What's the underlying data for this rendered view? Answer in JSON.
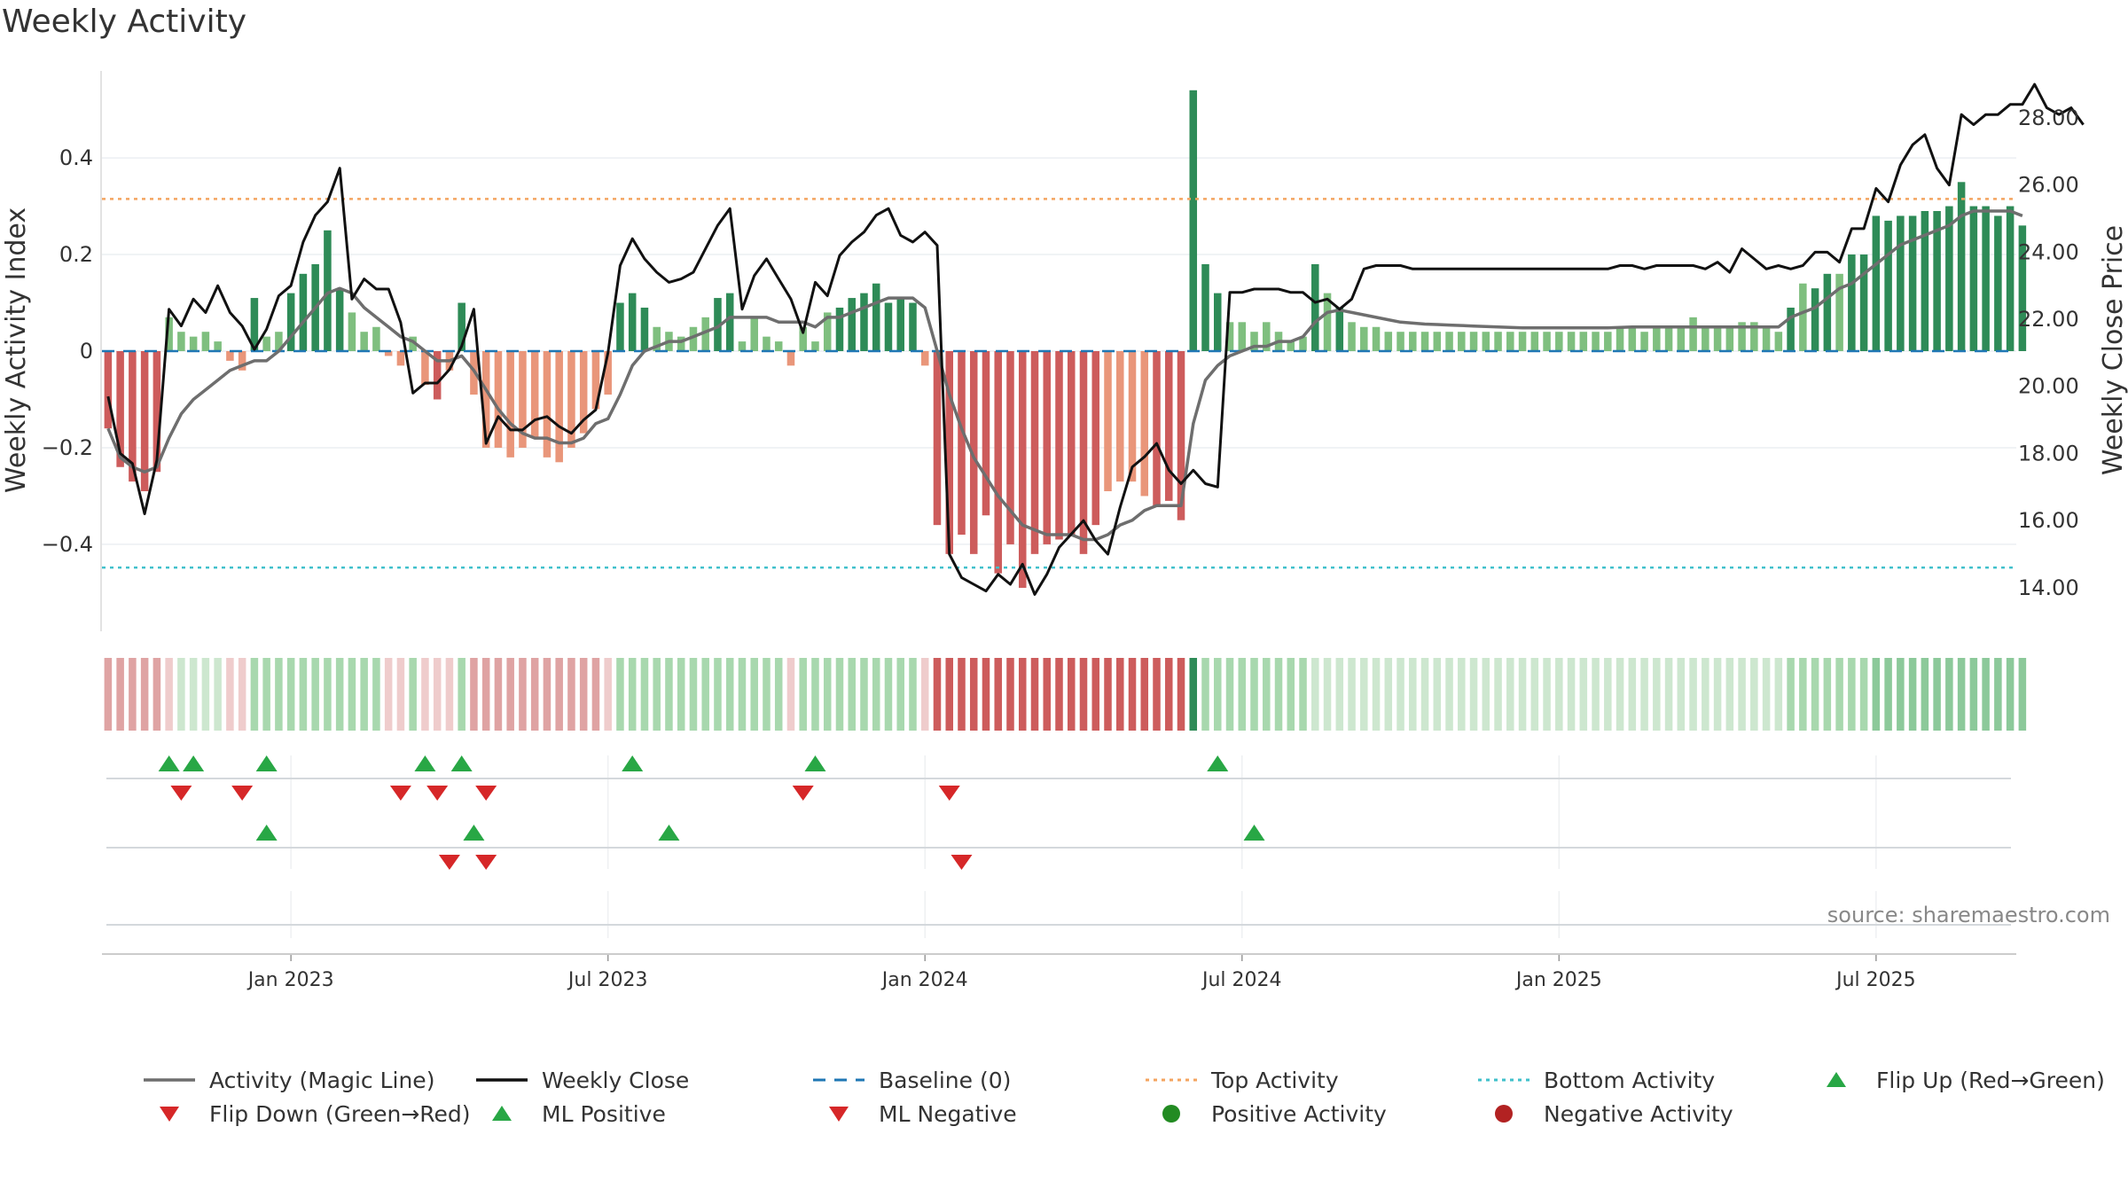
{
  "title": "Weekly Activity",
  "source": "source: sharemaestro.com",
  "colors": {
    "pos_strong": "#2e8b57",
    "pos_light": "#7fbf7f",
    "neg_strong": "#cd5c5c",
    "neg_light": "#e9967a",
    "magic": "#6e6e6e",
    "close": "#111111",
    "baseline": "#1f77b4",
    "top": "#f4a460",
    "bottom": "#40c0cb",
    "up": "#28a745",
    "down": "#d62728"
  },
  "legend": [
    {
      "label": "Activity (Magic Line)",
      "icon": "magic-line-icon"
    },
    {
      "label": "Weekly Close",
      "icon": "close-line-icon"
    },
    {
      "label": "Baseline (0)",
      "icon": "baseline-dash-icon"
    },
    {
      "label": "Top Activity",
      "icon": "top-dot-line-icon"
    },
    {
      "label": "Bottom Activity",
      "icon": "bottom-dot-line-icon"
    },
    {
      "label": "Flip Up (Red→Green)",
      "icon": "triangle-up-icon"
    },
    {
      "label": "Flip Down (Green→Red)",
      "icon": "triangle-down-icon"
    },
    {
      "label": "ML Positive",
      "icon": "triangle-up-icon"
    },
    {
      "label": "ML Negative",
      "icon": "triangle-down-icon"
    },
    {
      "label": "Positive Activity",
      "icon": "green-circle-icon"
    },
    {
      "label": "Negative Activity",
      "icon": "red-circle-icon"
    }
  ],
  "chart_data": {
    "type": "bar+line",
    "title": "Weekly Activity",
    "ylabel": "Weekly Activity Index",
    "y2label": "Weekly Close Price",
    "ylim": [
      -0.58,
      0.58
    ],
    "y2lim": [
      12.7,
      29.4
    ],
    "yticks": [
      -0.4,
      -0.2,
      0,
      0.2,
      0.4
    ],
    "ytick_labels": [
      "−0.4",
      "−0.2",
      "0",
      "0.2",
      "0.4"
    ],
    "y2ticks": [
      14,
      16,
      18,
      20,
      22,
      24,
      26,
      28
    ],
    "y2tick_labels": [
      "14.00",
      "16.00",
      "18.00",
      "20.00",
      "22.00",
      "24.00",
      "26.00",
      "28.00"
    ],
    "x_ticks": [
      {
        "label": "Jan 2023",
        "week": 15
      },
      {
        "label": "Jul 2023",
        "week": 41
      },
      {
        "label": "Jan 2024",
        "week": 67
      },
      {
        "label": "Jul 2024",
        "week": 93
      },
      {
        "label": "Jan 2025",
        "week": 119
      },
      {
        "label": "Jul 2025",
        "week": 145
      }
    ],
    "top_activity": 0.315,
    "bottom_activity": -0.448,
    "activity": [
      -0.16,
      -0.24,
      -0.27,
      -0.29,
      -0.25,
      0.07,
      0.04,
      0.03,
      0.04,
      0.02,
      -0.02,
      -0.04,
      0.11,
      0.03,
      0.04,
      0.12,
      0.16,
      0.18,
      0.25,
      0.13,
      0.08,
      0.04,
      0.05,
      -0.01,
      -0.03,
      0.03,
      -0.07,
      -0.1,
      -0.04,
      0.1,
      -0.09,
      -0.2,
      -0.2,
      -0.22,
      -0.2,
      -0.18,
      -0.22,
      -0.23,
      -0.2,
      -0.17,
      -0.12,
      -0.09,
      0.1,
      0.12,
      0.09,
      0.05,
      0.04,
      0.03,
      0.05,
      0.07,
      0.11,
      0.12,
      0.02,
      0.07,
      0.03,
      0.02,
      -0.03,
      0.05,
      0.02,
      0.08,
      0.09,
      0.11,
      0.12,
      0.14,
      0.1,
      0.11,
      0.1,
      -0.03,
      -0.36,
      -0.42,
      -0.38,
      -0.42,
      -0.34,
      -0.46,
      -0.4,
      -0.49,
      -0.42,
      -0.4,
      -0.39,
      -0.38,
      -0.42,
      -0.36,
      -0.29,
      -0.27,
      -0.27,
      -0.3,
      -0.32,
      -0.31,
      -0.35,
      0.54,
      0.18,
      0.12,
      0.06,
      0.06,
      0.04,
      0.06,
      0.04,
      0.02,
      0.03,
      0.18,
      0.12,
      0.09,
      0.06,
      0.05,
      0.05,
      0.04,
      0.04,
      0.04,
      0.04,
      0.04,
      0.04,
      0.04,
      0.04,
      0.04,
      0.04,
      0.04,
      0.04,
      0.04,
      0.04,
      0.04,
      0.04,
      0.04,
      0.04,
      0.04,
      0.05,
      0.05,
      0.04,
      0.05,
      0.05,
      0.05,
      0.07,
      0.05,
      0.05,
      0.05,
      0.06,
      0.06,
      0.05,
      0.04,
      0.09,
      0.14,
      0.13,
      0.16,
      0.16,
      0.2,
      0.2,
      0.28,
      0.27,
      0.28,
      0.28,
      0.29,
      0.29,
      0.3,
      0.35,
      0.3,
      0.3,
      0.28,
      0.3,
      0.26
    ],
    "magic_line": [
      -0.16,
      -0.22,
      -0.24,
      -0.25,
      -0.24,
      -0.18,
      -0.13,
      -0.1,
      -0.08,
      -0.06,
      -0.04,
      -0.03,
      -0.02,
      -0.02,
      0.0,
      0.03,
      0.06,
      0.09,
      0.12,
      0.13,
      0.12,
      0.09,
      0.07,
      0.05,
      0.03,
      0.02,
      0.0,
      -0.02,
      -0.02,
      -0.01,
      -0.04,
      -0.08,
      -0.12,
      -0.15,
      -0.17,
      -0.18,
      -0.18,
      -0.19,
      -0.19,
      -0.18,
      -0.15,
      -0.14,
      -0.09,
      -0.03,
      0.0,
      0.01,
      0.02,
      0.02,
      0.03,
      0.04,
      0.05,
      0.07,
      0.07,
      0.07,
      0.07,
      0.06,
      0.06,
      0.06,
      0.05,
      0.07,
      0.07,
      0.08,
      0.09,
      0.1,
      0.11,
      0.11,
      0.11,
      0.09,
      0.0,
      -0.09,
      -0.16,
      -0.22,
      -0.26,
      -0.3,
      -0.33,
      -0.36,
      -0.37,
      -0.38,
      -0.38,
      -0.38,
      -0.39,
      -0.39,
      -0.38,
      -0.36,
      -0.35,
      -0.33,
      -0.32,
      -0.32,
      -0.32,
      -0.15,
      -0.06,
      -0.03,
      -0.01,
      0.0,
      0.01,
      0.01,
      0.02,
      0.02,
      0.03,
      0.06,
      0.08,
      0.085,
      0.08,
      0.075,
      0.07,
      0.065,
      0.06,
      0.058,
      0.056,
      0.055,
      0.054,
      0.053,
      0.052,
      0.051,
      0.05,
      0.049,
      0.048,
      0.048,
      0.048,
      0.048,
      0.048,
      0.048,
      0.048,
      0.048,
      0.049,
      0.05,
      0.05,
      0.05,
      0.05,
      0.05,
      0.05,
      0.05,
      0.05,
      0.05,
      0.05,
      0.05,
      0.05,
      0.05,
      0.07,
      0.08,
      0.09,
      0.11,
      0.13,
      0.14,
      0.16,
      0.18,
      0.2,
      0.22,
      0.23,
      0.24,
      0.25,
      0.26,
      0.28,
      0.29,
      0.29,
      0.29,
      0.29,
      0.28
    ],
    "weekly_close": [
      19.7,
      18.0,
      17.7,
      16.2,
      17.8,
      22.3,
      21.8,
      22.6,
      22.2,
      23.0,
      22.2,
      21.8,
      21.1,
      21.7,
      22.7,
      23.0,
      24.3,
      25.1,
      25.5,
      26.5,
      22.6,
      23.2,
      22.9,
      22.9,
      21.9,
      19.8,
      20.1,
      20.1,
      20.5,
      21.2,
      22.3,
      18.3,
      19.1,
      18.7,
      18.7,
      19.0,
      19.1,
      18.8,
      18.6,
      19.0,
      19.3,
      21.0,
      23.6,
      24.4,
      23.8,
      23.4,
      23.1,
      23.2,
      23.4,
      24.1,
      24.8,
      25.3,
      22.3,
      23.3,
      23.8,
      23.2,
      22.6,
      21.6,
      23.1,
      22.7,
      23.9,
      24.3,
      24.6,
      25.1,
      25.3,
      24.5,
      24.3,
      24.6,
      24.2,
      15.0,
      14.3,
      14.1,
      13.9,
      14.4,
      14.1,
      14.7,
      13.8,
      14.4,
      15.2,
      15.6,
      16.0,
      15.4,
      15.0,
      16.4,
      17.6,
      17.9,
      18.3,
      17.5,
      17.1,
      17.5,
      17.1,
      17.0,
      22.8,
      22.8,
      22.9,
      22.9,
      22.9,
      22.8,
      22.8,
      22.5,
      22.6,
      22.3,
      22.6,
      23.5,
      23.6,
      23.6,
      23.6,
      23.5,
      23.5,
      23.5,
      23.5,
      23.5,
      23.5,
      23.5,
      23.5,
      23.5,
      23.5,
      23.5,
      23.5,
      23.5,
      23.5,
      23.5,
      23.5,
      23.5,
      23.6,
      23.6,
      23.5,
      23.6,
      23.6,
      23.6,
      23.6,
      23.5,
      23.7,
      23.4,
      24.1,
      23.8,
      23.5,
      23.6,
      23.5,
      23.6,
      24.0,
      24.0,
      23.7,
      24.7,
      24.7,
      25.9,
      25.5,
      26.6,
      27.2,
      27.5,
      26.5,
      26.0,
      28.1,
      27.8,
      28.1,
      28.1,
      28.4,
      28.4,
      29.0,
      28.3,
      28.1,
      28.3,
      27.8
    ],
    "heatstrip": [
      -2,
      -2,
      -2,
      -2,
      -2,
      -1,
      1,
      1,
      1,
      1,
      -1,
      -1,
      2,
      2,
      2,
      2,
      2,
      2,
      2,
      2,
      2,
      2,
      2,
      -1,
      -1,
      2,
      -1,
      -1,
      -1,
      2,
      -2,
      -2,
      -2,
      -2,
      -2,
      -2,
      -2,
      -2,
      -2,
      -2,
      -2,
      -1,
      2,
      2,
      2,
      2,
      2,
      2,
      2,
      2,
      2,
      2,
      2,
      2,
      2,
      2,
      -1,
      2,
      2,
      2,
      2,
      2,
      2,
      2,
      2,
      2,
      2,
      -1,
      -3,
      -3,
      -3,
      -3,
      -3,
      -3,
      -3,
      -3,
      -3,
      -3,
      -3,
      -3,
      -3,
      -3,
      -3,
      -3,
      -3,
      -3,
      -3,
      -3,
      -3,
      4,
      2,
      2,
      2,
      2,
      2,
      2,
      2,
      2,
      2,
      1,
      1,
      1,
      1,
      1,
      1,
      1,
      1,
      1,
      1,
      1,
      1,
      1,
      1,
      1,
      1,
      1,
      1,
      1,
      1,
      1,
      1,
      1,
      1,
      1,
      1,
      1,
      1,
      1,
      1,
      1,
      1,
      1,
      1,
      1,
      1,
      1,
      1,
      1,
      2,
      2,
      2,
      2,
      2,
      2,
      2,
      3,
      3,
      3,
      3,
      3,
      3,
      3,
      3,
      3,
      3,
      3,
      3,
      3
    ],
    "flip_up_weeks": [
      5,
      7,
      13,
      26,
      29,
      43,
      58,
      91
    ],
    "flip_down_weeks": [
      6,
      11,
      24,
      27,
      31,
      57,
      69
    ],
    "ml_positive_weeks": [
      13,
      30,
      46,
      94
    ],
    "ml_negative_weeks": [
      28,
      31,
      70
    ],
    "num_weeks": 157
  }
}
